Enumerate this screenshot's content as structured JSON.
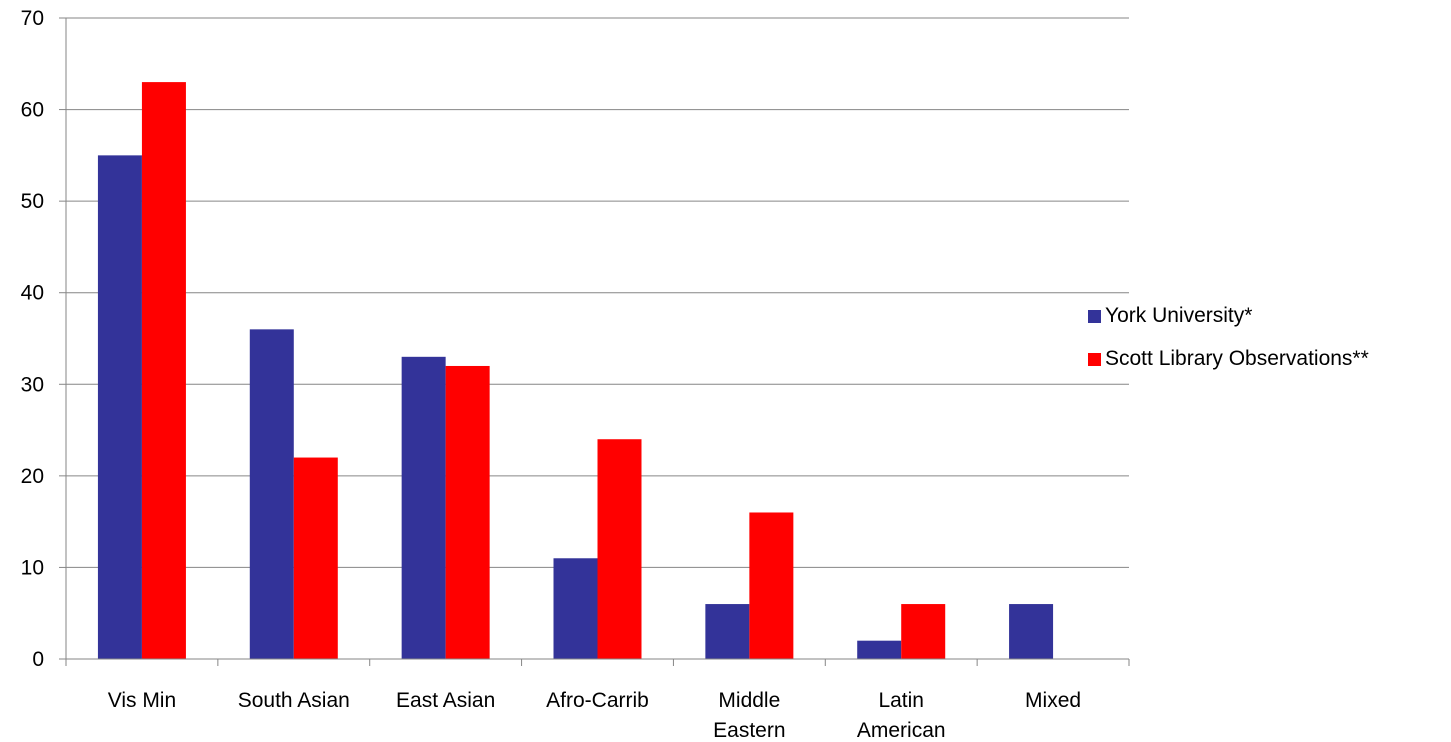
{
  "chart_data": {
    "type": "bar",
    "categories": [
      [
        "Vis Min"
      ],
      [
        "South Asian"
      ],
      [
        "East Asian"
      ],
      [
        "Afro-Carrib"
      ],
      [
        "Middle",
        "Eastern"
      ],
      [
        "Latin",
        "American"
      ],
      [
        "Mixed"
      ]
    ],
    "series": [
      {
        "name": "York University*",
        "color": "#333399",
        "values": [
          55,
          36,
          33,
          11,
          6,
          2,
          6
        ]
      },
      {
        "name": "Scott Library Observations**",
        "color": "#ff0000",
        "values": [
          63,
          22,
          32,
          24,
          16,
          6,
          null
        ]
      }
    ],
    "ylim": [
      0,
      70
    ],
    "yticks": [
      0,
      10,
      20,
      30,
      40,
      50,
      60,
      70
    ],
    "grid": true,
    "legend_position": "right",
    "title": "",
    "xlabel": "",
    "ylabel": ""
  }
}
